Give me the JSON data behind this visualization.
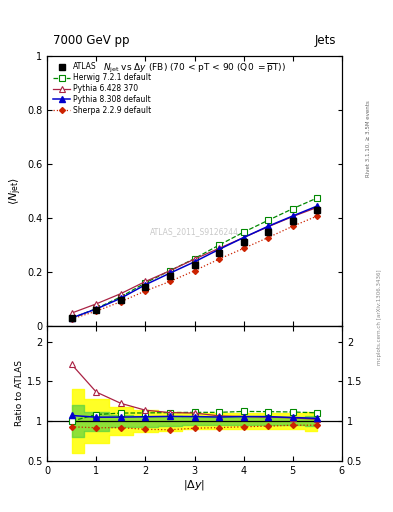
{
  "title_top": "7000 GeV pp",
  "title_right": "Jets",
  "watermark": "ATLAS_2011_S9126244",
  "rivet_label": "Rivet 3.1.10, ≥ 3.5M events",
  "arxiv_label": "mcplots.cern.ch [arXiv:1306.3436]",
  "x": [
    0.5,
    1.0,
    1.5,
    2.0,
    2.5,
    3.0,
    3.5,
    4.0,
    4.5,
    5.0,
    5.5
  ],
  "atlas_y": [
    0.028,
    0.06,
    0.098,
    0.145,
    0.185,
    0.225,
    0.27,
    0.31,
    0.35,
    0.39,
    0.43
  ],
  "atlas_yerr": [
    0.003,
    0.004,
    0.004,
    0.005,
    0.005,
    0.006,
    0.007,
    0.008,
    0.009,
    0.01,
    0.012
  ],
  "herwig_y": [
    0.028,
    0.065,
    0.108,
    0.16,
    0.205,
    0.25,
    0.3,
    0.348,
    0.392,
    0.435,
    0.475
  ],
  "pythia6_y": [
    0.048,
    0.082,
    0.12,
    0.165,
    0.205,
    0.248,
    0.288,
    0.328,
    0.368,
    0.406,
    0.44
  ],
  "pythia8_y": [
    0.03,
    0.063,
    0.103,
    0.153,
    0.196,
    0.238,
    0.284,
    0.328,
    0.37,
    0.408,
    0.445
  ],
  "sherpa_y": [
    0.026,
    0.055,
    0.09,
    0.13,
    0.165,
    0.205,
    0.248,
    0.288,
    0.328,
    0.37,
    0.408
  ],
  "atlas_band_yellow_lo": [
    0.6,
    0.72,
    0.82,
    0.86,
    0.88,
    0.9,
    0.9,
    0.9,
    0.9,
    0.9,
    0.88
  ],
  "atlas_band_yellow_hi": [
    1.4,
    1.28,
    1.18,
    1.14,
    1.12,
    1.1,
    1.1,
    1.1,
    1.1,
    1.1,
    1.12
  ],
  "atlas_band_green_lo": [
    0.8,
    0.88,
    0.92,
    0.93,
    0.94,
    0.95,
    0.95,
    0.95,
    0.95,
    0.95,
    0.94
  ],
  "atlas_band_green_hi": [
    1.2,
    1.12,
    1.08,
    1.07,
    1.06,
    1.05,
    1.05,
    1.05,
    1.05,
    1.05,
    1.06
  ],
  "color_atlas": "#000000",
  "color_herwig": "#008800",
  "color_pythia6": "#aa2244",
  "color_pythia8": "#0000cc",
  "color_sherpa": "#cc2200",
  "xlim": [
    0,
    6
  ],
  "ylim_main": [
    0,
    1.0
  ],
  "ylim_ratio": [
    0.5,
    2.2
  ],
  "yticks_main": [
    0,
    0.2,
    0.4,
    0.6,
    0.8,
    1.0
  ],
  "yticks_ratio": [
    0.5,
    1.0,
    1.5,
    2.0
  ],
  "background_color": "#ffffff"
}
